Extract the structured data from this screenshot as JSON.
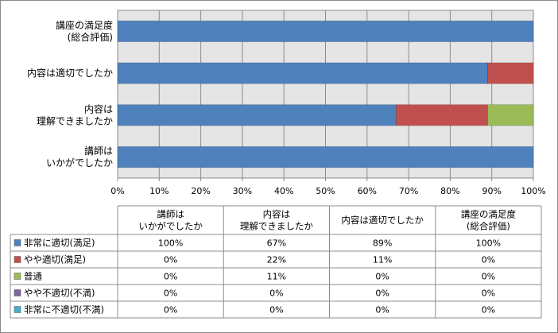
{
  "chart_data": {
    "type": "bar",
    "orientation": "horizontal",
    "stacked": "percent",
    "categories": [
      "講座の満足度\n(総合評価)",
      "内容は適切でしたか",
      "内容は\n理解できましたか",
      "講師は\nいかがでしたか"
    ],
    "series": [
      {
        "name": "非常に適切(満足)",
        "color": "#4F81BD",
        "values": [
          100,
          89,
          67,
          100
        ]
      },
      {
        "name": "やや適切(満足)",
        "color": "#C0504D",
        "values": [
          0,
          11,
          22,
          0
        ]
      },
      {
        "name": "普通",
        "color": "#9BBB59",
        "values": [
          0,
          0,
          11,
          0
        ]
      },
      {
        "name": "やや不適切(不満)",
        "color": "#8064A2",
        "values": [
          0,
          0,
          0,
          0
        ]
      },
      {
        "name": "非常に不適切(不満)",
        "color": "#4BACC6",
        "values": [
          0,
          0,
          0,
          0
        ]
      }
    ],
    "xlim": [
      0,
      100
    ],
    "xticks": [
      "0%",
      "10%",
      "20%",
      "30%",
      "40%",
      "50%",
      "60%",
      "70%",
      "80%",
      "90%",
      "100%"
    ],
    "grid": true,
    "background": "#E5E5E5",
    "table": {
      "columns": [
        "講師は\nいかがでしたか",
        "内容は\n理解できましたか",
        "内容は適切でしたか",
        "講座の満足度\n(総合評価)"
      ],
      "rows": [
        {
          "series": "非常に適切(満足)",
          "cells": [
            "100%",
            "67%",
            "89%",
            "100%"
          ]
        },
        {
          "series": "やや適切(満足)",
          "cells": [
            "0%",
            "22%",
            "11%",
            "0%"
          ]
        },
        {
          "series": "普通",
          "cells": [
            "0%",
            "11%",
            "0%",
            "0%"
          ]
        },
        {
          "series": "やや不適切(不満)",
          "cells": [
            "0%",
            "0%",
            "0%",
            "0%"
          ]
        },
        {
          "series": "非常に不適切(不満)",
          "cells": [
            "0%",
            "0%",
            "0%",
            "0%"
          ]
        }
      ]
    }
  }
}
